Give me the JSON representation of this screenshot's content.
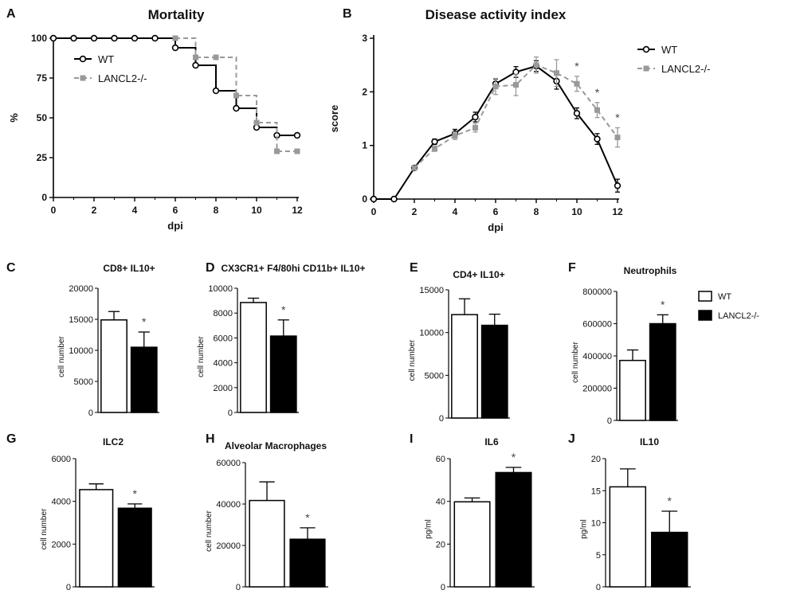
{
  "colors": {
    "wt": "#000000",
    "ko": "#999999",
    "star": "#555555",
    "axis": "#000000"
  },
  "chart_data": [
    {
      "id": "A",
      "type": "line",
      "panel_label": "A",
      "title": "Mortality",
      "xlabel": "dpi",
      "ylabel": "%",
      "xlim": [
        0,
        12
      ],
      "ylim": [
        0,
        100
      ],
      "xticks": [
        0,
        2,
        4,
        6,
        8,
        10,
        12
      ],
      "yticks": [
        0,
        25,
        50,
        75,
        100
      ],
      "legend": "top-left",
      "step": true,
      "series": [
        {
          "name": "WT",
          "style": "solid",
          "x": [
            0,
            1,
            2,
            3,
            4,
            5,
            6,
            7,
            8,
            9,
            10,
            11,
            12
          ],
          "y": [
            100,
            100,
            100,
            100,
            100,
            100,
            94,
            83,
            67,
            56,
            44,
            39,
            39
          ]
        },
        {
          "name": "LANCL2-/-",
          "style": "dashed",
          "x": [
            6,
            7,
            8,
            9,
            10,
            11,
            12
          ],
          "y": [
            100,
            88,
            88,
            64,
            47,
            29,
            29
          ]
        }
      ]
    },
    {
      "id": "B",
      "type": "line",
      "panel_label": "B",
      "title": "Disease activity index",
      "xlabel": "dpi",
      "ylabel": "score",
      "xlim": [
        0,
        12
      ],
      "ylim": [
        0,
        3
      ],
      "xticks": [
        0,
        2,
        4,
        6,
        8,
        10,
        12
      ],
      "yticks": [
        0,
        1,
        2,
        3
      ],
      "legend": "right",
      "series": [
        {
          "name": "WT",
          "style": "solid",
          "x": [
            0,
            1,
            2,
            3,
            4,
            5,
            6,
            7,
            8,
            9,
            10,
            11,
            12
          ],
          "y": [
            0,
            0,
            0.58,
            1.07,
            1.22,
            1.53,
            2.15,
            2.37,
            2.48,
            2.2,
            1.6,
            1.12,
            0.25
          ],
          "err": [
            0,
            0,
            0.04,
            0.05,
            0.08,
            0.09,
            0.09,
            0.1,
            0.1,
            0.15,
            0.1,
            0.1,
            0.12
          ]
        },
        {
          "name": "LANCL2-/-",
          "style": "dashed",
          "x": [
            2,
            3,
            4,
            5,
            6,
            7,
            8,
            9,
            10,
            11,
            12
          ],
          "y": [
            0.58,
            0.94,
            1.18,
            1.33,
            2.1,
            2.13,
            2.5,
            2.35,
            2.15,
            1.66,
            1.15
          ],
          "err": [
            0.04,
            0.05,
            0.07,
            0.08,
            0.15,
            0.2,
            0.15,
            0.25,
            0.14,
            0.14,
            0.18
          ]
        }
      ],
      "significance_x": [
        10,
        11,
        12
      ],
      "significance_label": "*"
    },
    {
      "id": "C",
      "type": "bar",
      "panel_label": "C",
      "title": "CD8+ IL10+",
      "ylabel": "cell number",
      "ylim": [
        0,
        20000
      ],
      "yticks": [
        0,
        5000,
        10000,
        15000,
        20000
      ],
      "categories": [
        "WT",
        "LANCL2-/-"
      ],
      "values": [
        14900,
        10500
      ],
      "errors": [
        1350,
        2450
      ],
      "significance": "*"
    },
    {
      "id": "D",
      "type": "bar",
      "panel_label": "D",
      "title": "CX3CR1+ F4/80hi CD11b+ IL10+",
      "ylabel": "cell number",
      "ylim": [
        0,
        10000
      ],
      "yticks": [
        0,
        2000,
        4000,
        6000,
        8000,
        10000
      ],
      "categories": [
        "WT",
        "LANCL2-/-"
      ],
      "values": [
        8850,
        6150
      ],
      "errors": [
        350,
        1300
      ],
      "significance": "*"
    },
    {
      "id": "E",
      "type": "bar",
      "panel_label": "E",
      "title": "CD4+ IL10+",
      "ylabel": "cell number",
      "ylim": [
        0,
        15000
      ],
      "yticks": [
        0,
        5000,
        10000,
        15000
      ],
      "categories": [
        "WT",
        "LANCL2-/-"
      ],
      "values": [
        12100,
        10850
      ],
      "errors": [
        1850,
        1300
      ],
      "significance": ""
    },
    {
      "id": "F",
      "type": "bar",
      "panel_label": "F",
      "title": "Neutrophils",
      "ylabel": "cell number",
      "ylim": [
        0,
        800000
      ],
      "yticks": [
        0,
        200000,
        400000,
        600000,
        800000
      ],
      "categories": [
        "WT",
        "LANCL2-/-"
      ],
      "values": [
        372000,
        600000
      ],
      "errors": [
        65000,
        55000
      ],
      "significance": "*"
    },
    {
      "id": "G",
      "type": "bar",
      "panel_label": "G",
      "title": "ILC2",
      "ylabel": "cell number",
      "ylim": [
        0,
        6000
      ],
      "yticks": [
        0,
        2000,
        4000,
        6000
      ],
      "categories": [
        "WT",
        "LANCL2-/-"
      ],
      "values": [
        4550,
        3680
      ],
      "errors": [
        270,
        200
      ],
      "significance": "*"
    },
    {
      "id": "H",
      "type": "bar",
      "panel_label": "H",
      "title": "Alveolar Macrophages",
      "ylabel": "cell number",
      "ylim": [
        0,
        60000
      ],
      "yticks": [
        0,
        20000,
        40000,
        60000
      ],
      "categories": [
        "WT",
        "LANCL2-/-"
      ],
      "values": [
        41700,
        23000
      ],
      "errors": [
        9000,
        5500
      ],
      "significance": "*"
    },
    {
      "id": "I",
      "type": "bar",
      "panel_label": "I",
      "title": "IL6",
      "ylabel": "pg/ml",
      "ylim": [
        0,
        60
      ],
      "yticks": [
        0,
        20,
        40,
        60
      ],
      "categories": [
        "WT",
        "LANCL2-/-"
      ],
      "values": [
        39.8,
        53.5
      ],
      "errors": [
        1.8,
        2.4
      ],
      "significance": "*"
    },
    {
      "id": "J",
      "type": "bar",
      "panel_label": "J",
      "title": "IL10",
      "ylabel": "pg/ml",
      "ylim": [
        0,
        20
      ],
      "yticks": [
        0,
        5,
        10,
        15,
        20
      ],
      "categories": [
        "WT",
        "LANCL2-/-"
      ],
      "values": [
        15.6,
        8.5
      ],
      "errors": [
        2.8,
        3.3
      ],
      "significance": "*"
    }
  ],
  "bar_legend": {
    "items": [
      "WT",
      "LANCL2-/-"
    ]
  }
}
